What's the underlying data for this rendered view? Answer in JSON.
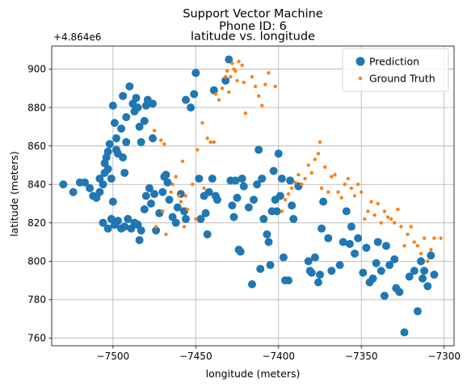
{
  "chart_data": {
    "type": "scatter",
    "title": "Support Vector Machine",
    "subtitle": "Phone ID: 6",
    "axes_title": "latitude vs. longitude",
    "xlabel": "longitude (meters)",
    "ylabel": "latitude (meters)",
    "y_offset_label": "+4.864e6",
    "xlim": [
      -7537,
      -7294
    ],
    "ylim": [
      756,
      912
    ],
    "xticks": [
      -7500,
      -7450,
      -7400,
      -7350,
      -7300
    ],
    "yticks": [
      760,
      780,
      800,
      820,
      840,
      860,
      880,
      900
    ],
    "xtick_labels": [
      "−7500",
      "−7450",
      "−7400",
      "−7350",
      "−7300"
    ],
    "ytick_labels": [
      "760",
      "780",
      "800",
      "820",
      "840",
      "860",
      "880",
      "900"
    ],
    "grid": true,
    "legend_position": "top-right",
    "colors": {
      "prediction": "#1f77b4",
      "ground_truth": "#ff7f0e"
    },
    "series": [
      {
        "name": "Prediction",
        "marker": "large-dot",
        "points": [
          [
            -7530,
            840
          ],
          [
            -7524,
            836
          ],
          [
            -7520,
            841
          ],
          [
            -7517,
            841
          ],
          [
            -7514,
            838
          ],
          [
            -7512,
            834
          ],
          [
            -7510,
            833
          ],
          [
            -7508,
            836
          ],
          [
            -7508,
            843
          ],
          [
            -7506,
            840
          ],
          [
            -7505,
            846
          ],
          [
            -7505,
            851
          ],
          [
            -7504,
            854
          ],
          [
            -7503,
            857
          ],
          [
            -7503,
            848
          ],
          [
            -7502,
            861
          ],
          [
            -7501,
            843
          ],
          [
            -7500,
            831
          ],
          [
            -7499,
            872
          ],
          [
            -7500,
            881
          ],
          [
            -7498,
            864
          ],
          [
            -7498,
            858
          ],
          [
            -7497,
            856
          ],
          [
            -7495,
            869
          ],
          [
            -7494,
            854
          ],
          [
            -7493,
            846
          ],
          [
            -7494,
            886
          ],
          [
            -7492,
            875
          ],
          [
            -7492,
            862
          ],
          [
            -7490,
            891
          ],
          [
            -7488,
            882
          ],
          [
            -7487,
            878
          ],
          [
            -7486,
            885
          ],
          [
            -7485,
            880
          ],
          [
            -7484,
            870
          ],
          [
            -7483,
            862
          ],
          [
            -7481,
            873
          ],
          [
            -7480,
            881
          ],
          [
            -7479,
            884
          ],
          [
            -7476,
            882
          ],
          [
            -7476,
            864
          ],
          [
            -7506,
            820
          ],
          [
            -7503,
            817
          ],
          [
            -7501,
            822
          ],
          [
            -7499,
            819
          ],
          [
            -7497,
            821
          ],
          [
            -7495,
            817
          ],
          [
            -7493,
            818
          ],
          [
            -7491,
            822
          ],
          [
            -7489,
            817
          ],
          [
            -7487,
            820
          ],
          [
            -7485,
            819
          ],
          [
            -7484,
            811
          ],
          [
            -7483,
            816
          ],
          [
            -7481,
            827
          ],
          [
            -7480,
            834
          ],
          [
            -7478,
            838
          ],
          [
            -7477,
            830
          ],
          [
            -7475,
            835
          ],
          [
            -7474,
            816
          ],
          [
            -7472,
            825
          ],
          [
            -7470,
            836
          ],
          [
            -7469,
            844
          ],
          [
            -7468,
            845
          ],
          [
            -7467,
            841
          ],
          [
            -7466,
            832
          ],
          [
            -7464,
            823
          ],
          [
            -7462,
            820
          ],
          [
            -7461,
            828
          ],
          [
            -7459,
            835
          ],
          [
            -7457,
            826
          ],
          [
            -7456,
            822
          ],
          [
            -7456,
            884
          ],
          [
            -7453,
            880
          ],
          [
            -7451,
            887
          ],
          [
            -7450,
            898
          ],
          [
            -7448,
            843
          ],
          [
            -7447,
            822
          ],
          [
            -7445,
            834
          ],
          [
            -7444,
            825
          ],
          [
            -7443,
            814
          ],
          [
            -7442,
            836
          ],
          [
            -7440,
            843
          ],
          [
            -7439,
            889
          ],
          [
            -7438,
            834
          ],
          [
            -7437,
            832
          ],
          [
            -7432,
            894
          ],
          [
            -7430,
            905
          ],
          [
            -7429,
            842
          ],
          [
            -7428,
            829
          ],
          [
            -7427,
            823
          ],
          [
            -7426,
            842
          ],
          [
            -7425,
            833
          ],
          [
            -7424,
            806
          ],
          [
            -7423,
            805
          ],
          [
            -7422,
            843
          ],
          [
            -7421,
            839
          ],
          [
            -7418,
            828
          ],
          [
            -7416,
            788
          ],
          [
            -7415,
            832
          ],
          [
            -7413,
            840
          ],
          [
            -7412,
            858
          ],
          [
            -7411,
            796
          ],
          [
            -7410,
            843
          ],
          [
            -7409,
            822
          ],
          [
            -7407,
            814
          ],
          [
            -7406,
            810
          ],
          [
            -7405,
            798
          ],
          [
            -7404,
            826
          ],
          [
            -7403,
            847
          ],
          [
            -7402,
            832
          ],
          [
            -7401,
            826
          ],
          [
            -7400,
            856
          ],
          [
            -7399,
            834
          ],
          [
            -7398,
            843
          ],
          [
            -7397,
            802
          ],
          [
            -7396,
            790
          ],
          [
            -7394,
            790
          ],
          [
            -7393,
            842
          ],
          [
            -7392,
            829
          ],
          [
            -7391,
            822
          ],
          [
            -7388,
            839
          ],
          [
            -7382,
            800
          ],
          [
            -7381,
            795
          ],
          [
            -7380,
            794
          ],
          [
            -7378,
            802
          ],
          [
            -7376,
            789
          ],
          [
            -7375,
            793
          ],
          [
            -7374,
            817
          ],
          [
            -7373,
            831
          ],
          [
            -7370,
            812
          ],
          [
            -7368,
            795
          ],
          [
            -7363,
            798
          ],
          [
            -7361,
            810
          ],
          [
            -7359,
            826
          ],
          [
            -7357,
            809
          ],
          [
            -7356,
            818
          ],
          [
            -7354,
            804
          ],
          [
            -7352,
            812
          ],
          [
            -7349,
            794
          ],
          [
            -7347,
            807
          ],
          [
            -7345,
            789
          ],
          [
            -7343,
            791
          ],
          [
            -7341,
            799
          ],
          [
            -7340,
            810
          ],
          [
            -7338,
            795
          ],
          [
            -7336,
            782
          ],
          [
            -7335,
            808
          ],
          [
            -7333,
            798
          ],
          [
            -7330,
            801
          ],
          [
            -7329,
            786
          ],
          [
            -7327,
            784
          ],
          [
            -7324,
            763
          ],
          [
            -7321,
            792
          ],
          [
            -7318,
            795
          ],
          [
            -7316,
            774
          ],
          [
            -7314,
            800
          ],
          [
            -7313,
            791
          ],
          [
            -7312,
            795
          ],
          [
            -7310,
            787
          ],
          [
            -7308,
            803
          ],
          [
            -7306,
            793
          ]
        ]
      },
      {
        "name": "Ground Truth",
        "marker": "small-dot",
        "points": [
          [
            -7475,
            868
          ],
          [
            -7471,
            863
          ],
          [
            -7469,
            861
          ],
          [
            -7474,
            818
          ],
          [
            -7470,
            826
          ],
          [
            -7468,
            814
          ],
          [
            -7465,
            836
          ],
          [
            -7464,
            840
          ],
          [
            -7462,
            844
          ],
          [
            -7460,
            834
          ],
          [
            -7459,
            831
          ],
          [
            -7458,
            852
          ],
          [
            -7457,
            818
          ],
          [
            -7456,
            834
          ],
          [
            -7455,
            827
          ],
          [
            -7452,
            840
          ],
          [
            -7450,
            822
          ],
          [
            -7449,
            858
          ],
          [
            -7446,
            872
          ],
          [
            -7445,
            838
          ],
          [
            -7443,
            864
          ],
          [
            -7441,
            862
          ],
          [
            -7439,
            862
          ],
          [
            -7438,
            887
          ],
          [
            -7436,
            884
          ],
          [
            -7434,
            890
          ],
          [
            -7432,
            896
          ],
          [
            -7431,
            899
          ],
          [
            -7430,
            888
          ],
          [
            -7429,
            896
          ],
          [
            -7428,
            903
          ],
          [
            -7427,
            900
          ],
          [
            -7426,
            899
          ],
          [
            -7425,
            894
          ],
          [
            -7424,
            904
          ],
          [
            -7422,
            902
          ],
          [
            -7421,
            893
          ],
          [
            -7420,
            877
          ],
          [
            -7416,
            896
          ],
          [
            -7414,
            891
          ],
          [
            -7412,
            886
          ],
          [
            -7410,
            881
          ],
          [
            -7408,
            892
          ],
          [
            -7406,
            898
          ],
          [
            -7402,
            891
          ],
          [
            -7398,
            826
          ],
          [
            -7396,
            832
          ],
          [
            -7394,
            835
          ],
          [
            -7392,
            838
          ],
          [
            -7390,
            841
          ],
          [
            -7388,
            845
          ],
          [
            -7386,
            840
          ],
          [
            -7384,
            843
          ],
          [
            -7382,
            850
          ],
          [
            -7380,
            846
          ],
          [
            -7378,
            853
          ],
          [
            -7376,
            856
          ],
          [
            -7375,
            862
          ],
          [
            -7374,
            838
          ],
          [
            -7372,
            849
          ],
          [
            -7370,
            836
          ],
          [
            -7368,
            844
          ],
          [
            -7366,
            845
          ],
          [
            -7364,
            836
          ],
          [
            -7362,
            833
          ],
          [
            -7360,
            840
          ],
          [
            -7358,
            843
          ],
          [
            -7356,
            838
          ],
          [
            -7354,
            834
          ],
          [
            -7352,
            840
          ],
          [
            -7350,
            836
          ],
          [
            -7348,
            822
          ],
          [
            -7346,
            826
          ],
          [
            -7344,
            831
          ],
          [
            -7342,
            824
          ],
          [
            -7340,
            830
          ],
          [
            -7338,
            820
          ],
          [
            -7336,
            826
          ],
          [
            -7334,
            823
          ],
          [
            -7332,
            822
          ],
          [
            -7330,
            820
          ],
          [
            -7328,
            827
          ],
          [
            -7326,
            818
          ],
          [
            -7324,
            808
          ],
          [
            -7322,
            814
          ],
          [
            -7320,
            818
          ],
          [
            -7318,
            810
          ],
          [
            -7316,
            808
          ],
          [
            -7314,
            804
          ],
          [
            -7312,
            812
          ],
          [
            -7310,
            800
          ],
          [
            -7308,
            806
          ],
          [
            -7306,
            812
          ],
          [
            -7302,
            812
          ]
        ]
      }
    ]
  }
}
